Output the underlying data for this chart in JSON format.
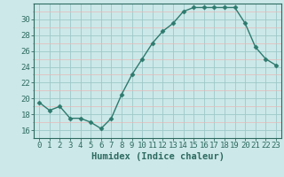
{
  "x": [
    0,
    1,
    2,
    3,
    4,
    5,
    6,
    7,
    8,
    9,
    10,
    11,
    12,
    13,
    14,
    15,
    16,
    17,
    18,
    19,
    20,
    21,
    22,
    23
  ],
  "y": [
    19.5,
    18.5,
    19.0,
    17.5,
    17.5,
    17.0,
    16.2,
    17.5,
    20.5,
    23.0,
    25.0,
    27.0,
    28.5,
    29.5,
    31.0,
    31.5,
    31.5,
    31.5,
    31.5,
    31.5,
    29.5,
    26.5,
    25.0,
    24.2
  ],
  "line_color": "#2d7a6e",
  "marker": "D",
  "marker_size": 2.5,
  "bg_color": "#cce8e8",
  "grid_color_teal": "#9ec8c8",
  "grid_color_pink": "#e8b8b8",
  "xlabel": "Humidex (Indice chaleur)",
  "ylim_min": 15,
  "ylim_max": 32,
  "yticks": [
    16,
    18,
    20,
    22,
    24,
    26,
    28,
    30
  ],
  "xticks": [
    0,
    1,
    2,
    3,
    4,
    5,
    6,
    7,
    8,
    9,
    10,
    11,
    12,
    13,
    14,
    15,
    16,
    17,
    18,
    19,
    20,
    21,
    22,
    23
  ],
  "xlabel_fontsize": 7.5,
  "tick_fontsize": 6.5,
  "spine_color": "#2d6a60",
  "label_color": "#2d6a60"
}
